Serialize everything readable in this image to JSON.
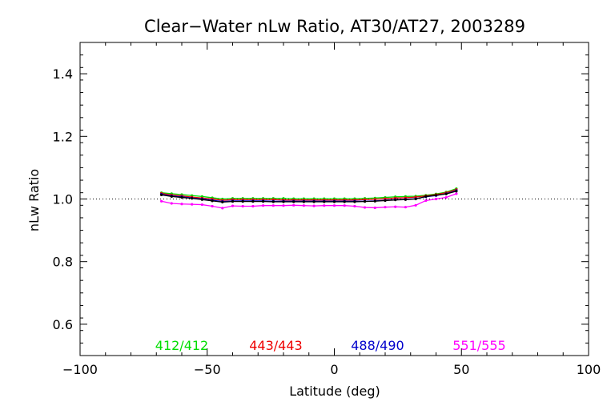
{
  "chart_data": {
    "type": "line",
    "title": "Clear−Water nLw Ratio, AT30/AT27, 2003289",
    "xlabel": "Latitude (deg)",
    "ylabel": "nLw Ratio",
    "xlim": [
      -100,
      100
    ],
    "ylim": [
      0.5,
      1.5
    ],
    "x_ticks": [
      -100,
      -50,
      0,
      50,
      100
    ],
    "x_tick_labels": [
      "−100",
      "−50",
      "0",
      "50",
      "100"
    ],
    "y_ticks": [
      0.6,
      0.8,
      1.0,
      1.2,
      1.4
    ],
    "y_tick_labels": [
      "0.6",
      "0.8",
      "1.0",
      "1.2",
      "1.4"
    ],
    "reference_line": 1.0,
    "x": [
      -68,
      -64,
      -60,
      -56,
      -52,
      -48,
      -44,
      -40,
      -36,
      -32,
      -28,
      -24,
      -20,
      -16,
      -12,
      -8,
      -4,
      0,
      4,
      8,
      12,
      16,
      20,
      24,
      28,
      32,
      36,
      40,
      44,
      48
    ],
    "series": [
      {
        "name": "412/412",
        "color": "#00dd00",
        "values": [
          1.02,
          1.017,
          1.014,
          1.011,
          1.008,
          1.004,
          1.0,
          1.002,
          1.002,
          1.002,
          1.002,
          1.002,
          1.002,
          1.001,
          1.001,
          1.001,
          1.001,
          1.001,
          1.001,
          1.001,
          1.002,
          1.003,
          1.005,
          1.007,
          1.008,
          1.009,
          1.012,
          1.016,
          1.022,
          1.033
        ]
      },
      {
        "name": "443/443",
        "color": "#ee0000",
        "values": [
          1.018,
          1.013,
          1.01,
          1.006,
          1.003,
          1.0,
          0.996,
          0.998,
          0.998,
          0.998,
          0.998,
          0.998,
          0.997,
          0.997,
          0.997,
          0.997,
          0.997,
          0.997,
          0.997,
          0.997,
          0.998,
          0.999,
          1.001,
          1.003,
          1.004,
          1.006,
          1.01,
          1.014,
          1.02,
          1.03
        ]
      },
      {
        "name": "488/490",
        "color": "#0000cc",
        "values": [
          1.015,
          1.01,
          1.007,
          1.003,
          1.0,
          0.996,
          0.992,
          0.994,
          0.994,
          0.994,
          0.994,
          0.993,
          0.993,
          0.993,
          0.993,
          0.993,
          0.993,
          0.993,
          0.993,
          0.993,
          0.993,
          0.994,
          0.996,
          0.998,
          0.999,
          1.001,
          1.007,
          1.011,
          1.017,
          1.027
        ]
      },
      {
        "name": "551/555",
        "color": "#ff00ff",
        "values": [
          0.993,
          0.986,
          0.984,
          0.983,
          0.982,
          0.977,
          0.971,
          0.978,
          0.977,
          0.977,
          0.979,
          0.979,
          0.979,
          0.98,
          0.979,
          0.978,
          0.979,
          0.979,
          0.979,
          0.977,
          0.973,
          0.972,
          0.974,
          0.975,
          0.974,
          0.98,
          0.995,
          1.0,
          1.005,
          1.017
        ]
      },
      {
        "name": "",
        "color": "#000000",
        "values": [
          1.013,
          1.008,
          1.005,
          1.002,
          0.998,
          0.994,
          0.99,
          0.992,
          0.992,
          0.992,
          0.992,
          0.991,
          0.991,
          0.991,
          0.991,
          0.991,
          0.991,
          0.991,
          0.991,
          0.991,
          0.992,
          0.993,
          0.995,
          0.997,
          0.998,
          1.0,
          1.008,
          1.012,
          1.016,
          1.025
        ]
      }
    ],
    "legend": [
      {
        "label": "412/412",
        "color": "#00dd00"
      },
      {
        "label": "443/443",
        "color": "#ee0000"
      },
      {
        "label": "488/490",
        "color": "#0000cc"
      },
      {
        "label": "551/555",
        "color": "#ff00ff"
      }
    ],
    "legend_placement": "bottom-inside",
    "grid": false
  }
}
